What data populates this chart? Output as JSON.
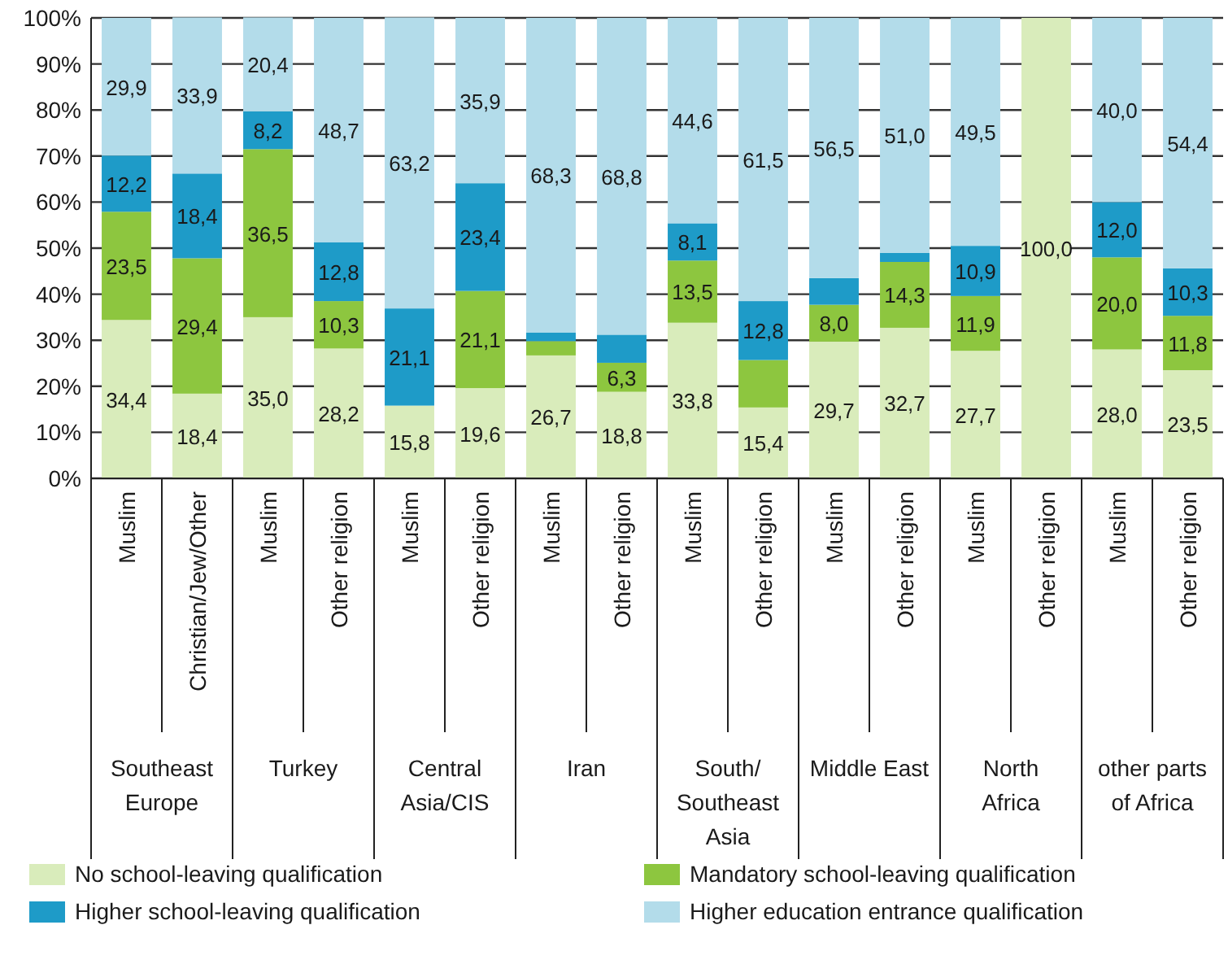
{
  "chart_data": {
    "type": "bar",
    "stacked": true,
    "categories": [
      "Muslim",
      "Christian/Jew/Other",
      "Muslim",
      "Other religion",
      "Muslim",
      "Other religion",
      "Muslim",
      "Other religion",
      "Muslim",
      "Other religion",
      "Muslim",
      "Other religion",
      "Muslim",
      "Other religion",
      "Muslim",
      "Other religion"
    ],
    "series": [
      {
        "name": "No school-leaving qualification",
        "color": "#d9ecbb",
        "values": [
          34.4,
          18.4,
          35.0,
          28.2,
          15.8,
          19.6,
          26.7,
          18.8,
          33.8,
          15.4,
          29.7,
          32.7,
          27.7,
          100.0,
          28.0,
          23.5
        ],
        "value_labels": [
          "34,4",
          "18,4",
          "35,0",
          "28,2",
          "15,8",
          "19,6",
          "26,7",
          "18,8",
          "33,8",
          "15,4",
          "29,7",
          "32,7",
          "27,7",
          "100,0",
          "28,0",
          "23,5"
        ]
      },
      {
        "name": "Mandatory school-leaving qualification",
        "color": "#8dc63f",
        "values": [
          23.5,
          29.4,
          36.5,
          10.3,
          0,
          21.1,
          3.1,
          6.3,
          13.5,
          10.3,
          8.0,
          14.3,
          11.9,
          0,
          20.0,
          11.8
        ],
        "value_labels": [
          "23,5",
          "29,4",
          "36,5",
          "10,3",
          null,
          "21,1",
          null,
          "6,3",
          "13,5",
          null,
          "8,0",
          "14,3",
          "11,9",
          null,
          "20,0",
          "11,8"
        ]
      },
      {
        "name": "Higher school-leaving qualification",
        "color": "#1e9bc8",
        "values": [
          12.2,
          18.4,
          8.2,
          12.8,
          21.1,
          23.4,
          1.9,
          6.1,
          8.1,
          12.8,
          5.8,
          2.0,
          10.9,
          0,
          12.0,
          10.3
        ],
        "value_labels": [
          "12,2",
          "18,4",
          "8,2",
          "12,8",
          "21,1",
          "23,4",
          null,
          null,
          "8,1",
          "12,8",
          null,
          null,
          "10,9",
          null,
          "12,0",
          "10,3"
        ]
      },
      {
        "name": "Higher education entrance qualification",
        "color": "#b3dcea",
        "values": [
          29.9,
          33.9,
          20.4,
          48.7,
          63.2,
          35.9,
          68.3,
          68.8,
          44.6,
          61.5,
          56.5,
          51.0,
          49.5,
          0,
          40.0,
          54.4
        ],
        "value_labels": [
          "29,9",
          "33,9",
          "20,4",
          "48,7",
          "63,2",
          "35,9",
          "68,3",
          "68,8",
          "44,6",
          "61,5",
          "56,5",
          "51,0",
          "49,5",
          null,
          "40,0",
          "54,4"
        ]
      }
    ],
    "annotations": [
      "Southeast Europe",
      "Turkey",
      "Central Asia/CIS",
      "Iran",
      "South/Southeast Asia",
      "Middle East",
      "North Africa",
      "other parts of Africa"
    ],
    "ylim": [
      0,
      100
    ],
    "yticks": [
      {
        "value": 0,
        "label": "0%"
      },
      {
        "value": 10,
        "label": "10%"
      },
      {
        "value": 20,
        "label": "20%"
      },
      {
        "value": 30,
        "label": "30%"
      },
      {
        "value": 40,
        "label": "40%"
      },
      {
        "value": 50,
        "label": "50%"
      },
      {
        "value": 60,
        "label": "60%"
      },
      {
        "value": 70,
        "label": "70%"
      },
      {
        "value": 80,
        "label": "80%"
      },
      {
        "value": 90,
        "label": "90%"
      },
      {
        "value": 100,
        "label": "100%"
      }
    ],
    "grid": "y",
    "legend": "bottom"
  }
}
